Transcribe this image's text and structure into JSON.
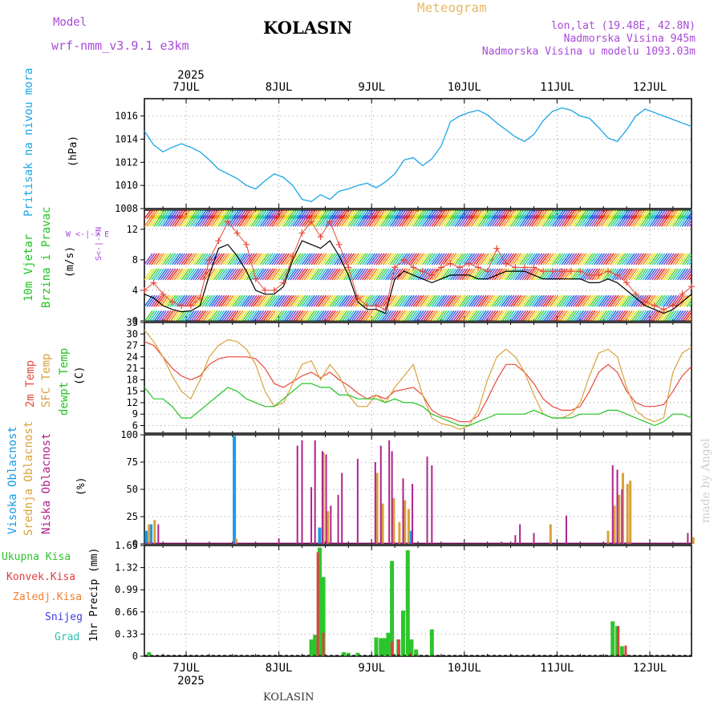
{
  "header": {
    "model_label": "Model",
    "model_name": "wrf-nmm_v3.9.1  e3km",
    "station": "KOLASIN",
    "product": "Meteogram",
    "coords": "lon,lat (19.48E, 42.8N)",
    "elevation": "Nadmorska Visina 945m",
    "model_elevation": "Nadmorska Visina u modelu 1093.03m",
    "footer_station": "KOLASIN",
    "watermark": "made by Angel"
  },
  "time_axis": {
    "year": "2025",
    "days": [
      "7JUL",
      "8JUL",
      "9JUL",
      "10JUL",
      "11JUL",
      "12JUL"
    ],
    "start_day": 6.55,
    "end_day": 12.45
  },
  "panel_labels": {
    "pressure": {
      "title": "Pritisak na nivou mora",
      "unit": "(hPa)"
    },
    "wind": {
      "title1": "10m Vjetar",
      "title2": "Brzina i Pravac",
      "unit": "(m/s)",
      "compass": "W <-|-> E",
      "compass_ns": "S<-|->N"
    },
    "temp": {
      "t2m": "2m Temp",
      "sfc": "SFC Temp",
      "dew": "dewpt Temp",
      "unit": "(C)"
    },
    "cloud": {
      "high": "Visoka Oblacnost",
      "mid": "Srednja Oblacnost",
      "low": "Niska Oblacnost",
      "unit": "(%)"
    },
    "precip": {
      "total": "Ukupna Kisa",
      "conv": "Konvek.Kisa",
      "snow_ground": "Zaledj.Kisa",
      "snow": "Snijeg",
      "hail": "Grad",
      "unit": "1hr Precip (mm)"
    }
  },
  "colors": {
    "pressure": "#1aa6e6",
    "t2m": "#e84a3c",
    "sfc": "#d9a23b",
    "dew": "#22c422",
    "wind_speed": "#000000",
    "wind_marker": "#e84a3c",
    "high_cloud": "#1a9ae6",
    "mid_cloud": "#d9a23b",
    "low_cloud": "#b0228c",
    "total_rain": "#2dc52d",
    "conv_rain": "#e04040",
    "freezing": "#f08030",
    "snow": "#4040e0",
    "hail": "#30c0b0",
    "model": "#a84ad8",
    "meteogram": "#e8b86a"
  },
  "chart_data": [
    {
      "type": "line",
      "title": "Pritisak na nivou mora",
      "ylabel": "(hPa)",
      "ylim": [
        1008,
        1017.5
      ],
      "yticks": [
        "1008",
        "1010",
        "1012",
        "1014",
        "1016"
      ],
      "x_days": [
        6.55,
        6.65,
        6.75,
        6.85,
        6.95,
        7.05,
        7.15,
        7.25,
        7.35,
        7.45,
        7.55,
        7.65,
        7.75,
        7.85,
        7.95,
        8.05,
        8.15,
        8.25,
        8.35,
        8.45,
        8.55,
        8.65,
        8.75,
        8.85,
        8.95,
        9.05,
        9.15,
        9.25,
        9.35,
        9.45,
        9.55,
        9.65,
        9.75,
        9.85,
        9.95,
        10.05,
        10.15,
        10.25,
        10.35,
        10.45,
        10.55,
        10.65,
        10.75,
        10.85,
        10.95,
        11.05,
        11.15,
        11.25,
        11.35,
        11.45,
        11.55,
        11.65,
        11.75,
        11.85,
        11.95,
        12.05,
        12.15,
        12.25,
        12.35,
        12.45
      ],
      "values": [
        1014.7,
        1013.5,
        1012.9,
        1013.3,
        1013.6,
        1013.3,
        1012.9,
        1012.2,
        1011.4,
        1011.0,
        1010.6,
        1010.0,
        1009.7,
        1010.4,
        1011.0,
        1010.7,
        1010.0,
        1008.8,
        1008.6,
        1009.2,
        1008.8,
        1009.5,
        1009.7,
        1010.0,
        1010.2,
        1009.8,
        1010.3,
        1011.0,
        1012.2,
        1012.4,
        1011.7,
        1012.3,
        1013.4,
        1015.5,
        1016.0,
        1016.3,
        1016.5,
        1016.1,
        1015.4,
        1014.8,
        1014.2,
        1013.8,
        1014.4,
        1015.6,
        1016.4,
        1016.7,
        1016.5,
        1016.0,
        1015.8,
        1015.0,
        1014.1,
        1013.8,
        1014.8,
        1016.0,
        1016.6,
        1016.3,
        1016.0,
        1015.7,
        1015.4,
        1015.1
      ],
      "series": [
        {
          "name": "MSLP",
          "values_ref": "values"
        }
      ]
    },
    {
      "type": "line",
      "title": "10m Vjetar Brzina i Pravac",
      "ylabel": "(m/s)",
      "ylim": [
        0,
        14.5
      ],
      "yticks": [
        "0",
        "4",
        "8",
        "12"
      ],
      "x_days": [
        6.55,
        6.65,
        6.75,
        6.85,
        6.95,
        7.05,
        7.15,
        7.25,
        7.35,
        7.45,
        7.55,
        7.65,
        7.75,
        7.85,
        7.95,
        8.05,
        8.15,
        8.25,
        8.35,
        8.45,
        8.55,
        8.65,
        8.75,
        8.85,
        8.95,
        9.05,
        9.15,
        9.25,
        9.35,
        9.45,
        9.55,
        9.65,
        9.75,
        9.85,
        9.95,
        10.05,
        10.15,
        10.25,
        10.35,
        10.45,
        10.55,
        10.65,
        10.75,
        10.85,
        10.95,
        11.05,
        11.15,
        11.25,
        11.35,
        11.45,
        11.55,
        11.65,
        11.75,
        11.85,
        11.95,
        12.05,
        12.15,
        12.25,
        12.35,
        12.45
      ],
      "speed": [
        3.5,
        3.0,
        2.0,
        1.5,
        1.2,
        1.3,
        2.0,
        6.0,
        9.5,
        10.0,
        8.5,
        6.5,
        4.0,
        3.5,
        3.5,
        4.5,
        8.0,
        10.5,
        10.0,
        9.5,
        10.5,
        8.5,
        6.0,
        2.5,
        1.5,
        1.5,
        1.0,
        5.5,
        6.5,
        6.0,
        5.5,
        5.0,
        5.5,
        6.0,
        6.0,
        6.0,
        5.5,
        5.5,
        6.0,
        6.5,
        6.5,
        6.5,
        6.0,
        5.5,
        5.5,
        5.5,
        5.5,
        5.5,
        5.0,
        5.0,
        5.5,
        5.0,
        4.0,
        3.0,
        2.0,
        1.5,
        1.0,
        1.5,
        2.5,
        3.5
      ],
      "gust": [
        4.0,
        5.0,
        3.5,
        2.5,
        2.0,
        2.0,
        3.0,
        8.0,
        10.5,
        13.0,
        11.5,
        10.0,
        5.5,
        4.0,
        4.0,
        5.0,
        8.5,
        11.5,
        13.0,
        11.0,
        13.0,
        10.0,
        7.0,
        3.0,
        2.0,
        2.0,
        1.5,
        7.0,
        8.0,
        7.0,
        6.5,
        6.0,
        7.0,
        7.5,
        7.0,
        7.5,
        7.0,
        6.5,
        9.5,
        7.5,
        7.0,
        7.0,
        7.0,
        6.5,
        6.5,
        6.5,
        6.5,
        6.5,
        6.0,
        6.0,
        6.5,
        6.0,
        5.0,
        3.5,
        2.5,
        2.0,
        1.5,
        2.0,
        3.5,
        4.5
      ],
      "barb_levels": [
        2.5,
        8,
        14,
        13,
        6,
        0.5
      ]
    },
    {
      "type": "line",
      "title": "Temperature",
      "ylabel": "(C)",
      "ylim": [
        4,
        33
      ],
      "yticks": [
        "6",
        "9",
        "12",
        "15",
        "18",
        "21",
        "24",
        "27",
        "30",
        "33"
      ],
      "x_days": [
        6.55,
        6.65,
        6.75,
        6.85,
        6.95,
        7.05,
        7.15,
        7.25,
        7.35,
        7.45,
        7.55,
        7.65,
        7.75,
        7.85,
        7.95,
        8.05,
        8.15,
        8.25,
        8.35,
        8.45,
        8.55,
        8.65,
        8.75,
        8.85,
        8.95,
        9.05,
        9.15,
        9.25,
        9.35,
        9.45,
        9.55,
        9.65,
        9.75,
        9.85,
        9.95,
        10.05,
        10.15,
        10.25,
        10.35,
        10.45,
        10.55,
        10.65,
        10.75,
        10.85,
        10.95,
        11.05,
        11.15,
        11.25,
        11.35,
        11.45,
        11.55,
        11.65,
        11.75,
        11.85,
        11.95,
        12.05,
        12.15,
        12.25,
        12.35,
        12.45
      ],
      "series": [
        {
          "name": "2m Temp",
          "values": [
            28,
            27,
            24,
            21,
            19,
            18,
            19,
            22,
            23.5,
            24,
            24,
            24,
            23.5,
            21,
            17,
            16,
            17.5,
            19,
            20,
            18.5,
            20,
            18,
            16.5,
            14.5,
            13,
            14,
            13,
            15,
            15.5,
            16,
            14,
            10,
            8.5,
            8,
            7,
            7,
            8.5,
            13,
            18,
            22,
            22,
            20,
            17,
            13,
            11,
            10,
            10,
            11,
            15,
            20,
            22,
            20,
            15,
            12,
            11,
            11,
            11.5,
            15,
            19,
            21.5
          ]
        },
        {
          "name": "SFC Temp",
          "values": [
            31,
            28,
            24,
            19,
            15,
            13,
            18,
            24,
            27,
            28.5,
            28,
            26,
            22,
            15,
            11,
            12,
            17,
            22,
            23,
            18,
            22,
            19,
            14,
            11,
            11,
            14,
            12,
            16,
            19,
            22,
            14,
            8,
            6.5,
            6,
            5,
            6,
            10,
            18,
            24,
            26,
            24,
            20,
            14,
            9,
            8,
            8,
            9,
            12,
            19,
            25,
            26,
            24,
            16,
            10,
            8,
            7,
            8,
            20,
            25,
            26.5
          ]
        },
        {
          "name": "dewpt Temp",
          "values": [
            16,
            13,
            13,
            11,
            8,
            8,
            10,
            12,
            14,
            16,
            15,
            13,
            12,
            11,
            11,
            13,
            15,
            17,
            17,
            16,
            16,
            14,
            14,
            13,
            13,
            13,
            12,
            13,
            12,
            12,
            11,
            9,
            8,
            7,
            6,
            6,
            7,
            8,
            9,
            9,
            9,
            9,
            10,
            9,
            8,
            8,
            8,
            9,
            9,
            9,
            10,
            10,
            9,
            8,
            7,
            6,
            7,
            9,
            9,
            8
          ]
        }
      ]
    },
    {
      "type": "bar",
      "title": "Oblacnost",
      "ylabel": "(%)",
      "ylim": [
        0,
        100
      ],
      "yticks": [
        "0",
        "25",
        "50",
        "75",
        "100"
      ],
      "series": [
        {
          "name": "Visoka Oblacnost",
          "x_days": [
            6.57,
            6.62,
            7.52,
            8.44,
            9.43
          ],
          "values": [
            12,
            18,
            99,
            15,
            12
          ]
        },
        {
          "name": "Srednja Oblacnost",
          "x_days": [
            6.6,
            6.66,
            7.54,
            8.48,
            8.53,
            9.06,
            9.12,
            9.24,
            9.3,
            9.36,
            9.4,
            10.93,
            11.55,
            11.62,
            11.67,
            11.71,
            11.76,
            11.79,
            12.47
          ],
          "values": [
            18,
            22,
            5,
            84,
            30,
            65,
            37,
            42,
            20,
            40,
            32,
            18,
            12,
            35,
            45,
            65,
            55,
            58,
            6
          ]
        },
        {
          "name": "Niska Oblacnost",
          "x_days": [
            6.7,
            8.0,
            8.2,
            8.25,
            8.35,
            8.39,
            8.47,
            8.51,
            8.56,
            8.64,
            8.68,
            8.85,
            9.04,
            9.1,
            9.19,
            9.22,
            9.34,
            9.44,
            9.6,
            9.65,
            10.4,
            10.55,
            10.6,
            10.75,
            11.1,
            11.6,
            11.65,
            11.7,
            12.41
          ],
          "values": [
            18,
            5,
            90,
            95,
            52,
            95,
            85,
            82,
            35,
            45,
            65,
            78,
            75,
            90,
            95,
            85,
            60,
            55,
            80,
            72,
            2,
            8,
            18,
            10,
            26,
            72,
            68,
            50,
            10
          ]
        }
      ]
    },
    {
      "type": "bar",
      "title": "1hr Precip",
      "ylabel": "1hr Precip (mm)",
      "ylim": [
        0,
        1.65
      ],
      "yticks": [
        "0",
        "0.33",
        "0.66",
        "0.99",
        "1.32",
        "1.65"
      ],
      "series": [
        {
          "name": "Ukupna Kisa",
          "x_days": [
            6.6,
            8.35,
            8.39,
            8.44,
            8.48,
            8.7,
            8.75,
            8.85,
            9.05,
            9.1,
            9.14,
            9.18,
            9.22,
            9.29,
            9.34,
            9.39,
            9.43,
            9.48,
            9.65,
            11.6,
            11.65,
            11.7
          ],
          "values": [
            0.06,
            0.25,
            0.32,
            1.62,
            1.18,
            0.06,
            0.05,
            0.05,
            0.28,
            0.27,
            0.27,
            0.35,
            1.42,
            0.25,
            0.68,
            1.58,
            0.25,
            0.1,
            0.4,
            0.52,
            0.45,
            0.15
          ]
        },
        {
          "name": "Konvek.Kisa",
          "x_days": [
            8.42,
            8.48,
            9.22,
            9.29,
            9.42,
            11.66,
            11.74
          ],
          "values": [
            1.55,
            0.35,
            0.22,
            0.25,
            0.05,
            0.45,
            0.16
          ]
        }
      ]
    }
  ]
}
